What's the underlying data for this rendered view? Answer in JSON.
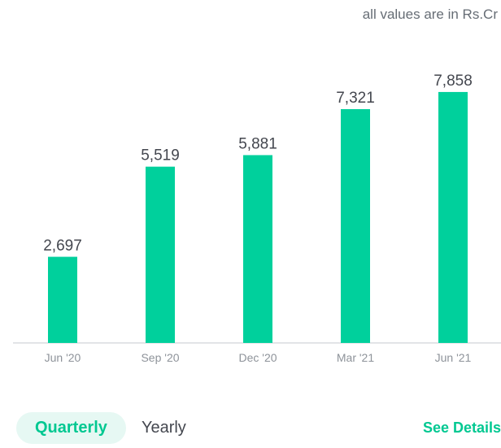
{
  "units_note": "all values are in Rs.Cr",
  "chart_data": {
    "type": "bar",
    "categories": [
      "Jun '20",
      "Sep '20",
      "Dec '20",
      "Mar '21",
      "Jun '21"
    ],
    "values": [
      2697,
      5519,
      5881,
      7321,
      7858
    ],
    "value_labels": [
      "2,697",
      "5,519",
      "5,881",
      "7,321",
      "7,858"
    ],
    "ylim": [
      0,
      8800
    ],
    "grid": false,
    "legend": "none",
    "bar_color": "#00d09c",
    "axis_color": "#d9dbdf"
  },
  "period_toggle": {
    "quarterly_label": "Quarterly",
    "yearly_label": "Yearly",
    "selected": "Quarterly"
  },
  "see_details_label": "See Details",
  "colors": {
    "accent": "#00c891",
    "active_pill_bg": "#e6f8f3"
  }
}
